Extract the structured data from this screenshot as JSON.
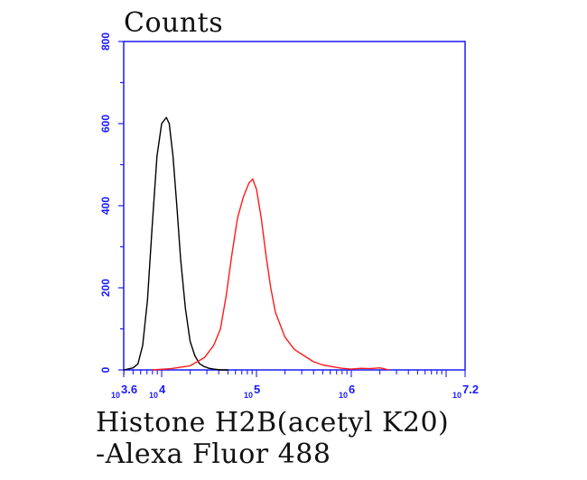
{
  "chart_data": {
    "type": "line",
    "ylabel": "Counts",
    "xlabel_lines": [
      "Histone H2B(acetyl K20)",
      "-Alexa Fluor 488"
    ],
    "x_scale": "log",
    "xlim_log10": [
      3.6,
      7.2
    ],
    "ylim": [
      0,
      800
    ],
    "yticks": [
      0,
      200,
      400,
      600,
      800
    ],
    "ytick_labels": [
      "0",
      "200",
      "400",
      "600",
      "800"
    ],
    "xticks_log10": [
      3.6,
      4,
      5,
      6,
      7.2
    ],
    "xtick_labels": [
      {
        "base": "10",
        "exp": "3.6"
      },
      {
        "base": "10",
        "exp": "4"
      },
      {
        "base": "10",
        "exp": "5"
      },
      {
        "base": "10",
        "exp": "6"
      },
      {
        "base": "10",
        "exp": "7.2"
      }
    ],
    "grid": false,
    "axis_color": "#1a1aff",
    "series": [
      {
        "color": "#000000",
        "x_log10": [
          3.6,
          3.7,
          3.75,
          3.8,
          3.85,
          3.9,
          3.95,
          4.0,
          4.05,
          4.08,
          4.12,
          4.16,
          4.2,
          4.25,
          4.3,
          4.35,
          4.4,
          4.45,
          4.5,
          4.55,
          4.62,
          4.7
        ],
        "y": [
          0,
          5,
          15,
          60,
          170,
          350,
          520,
          600,
          615,
          600,
          520,
          400,
          270,
          150,
          70,
          35,
          15,
          8,
          4,
          2,
          0,
          0
        ]
      },
      {
        "color": "#ff1a1a",
        "x_log10": [
          3.9,
          4.1,
          4.3,
          4.45,
          4.55,
          4.62,
          4.68,
          4.74,
          4.8,
          4.86,
          4.92,
          4.96,
          5.0,
          5.05,
          5.1,
          5.15,
          5.2,
          5.3,
          5.4,
          5.5,
          5.6,
          5.7,
          5.8,
          5.9,
          6.0,
          6.1,
          6.2,
          6.3,
          6.4
        ],
        "y": [
          0,
          3,
          10,
          30,
          60,
          100,
          180,
          280,
          370,
          420,
          455,
          465,
          440,
          370,
          280,
          200,
          140,
          80,
          50,
          35,
          20,
          12,
          8,
          4,
          2,
          4,
          3,
          5,
          0
        ]
      }
    ]
  }
}
